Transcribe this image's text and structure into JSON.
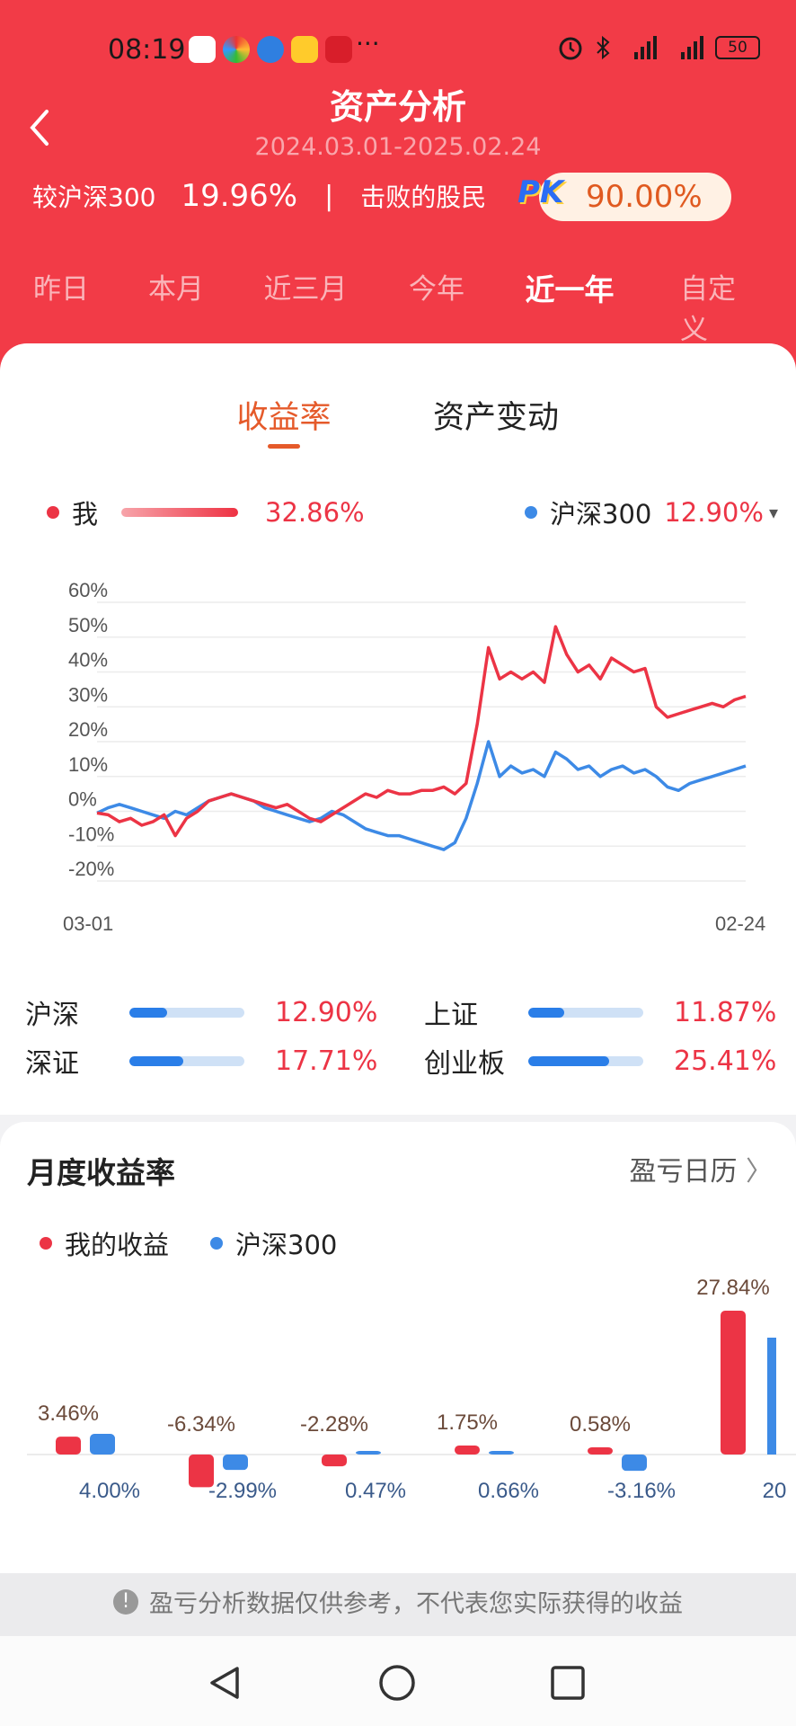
{
  "status": {
    "time": "08:19",
    "dots": "···",
    "battery": "50"
  },
  "header": {
    "title": "资产分析",
    "date_range": "2024.03.01-2025.02.24",
    "compare_label": "较沪深300",
    "compare_value": "19.96%",
    "separator": "|",
    "beat_label": "击败的股民",
    "pk": "PK",
    "beat_value": "90.00%"
  },
  "periods": [
    {
      "label": "昨日",
      "active": false
    },
    {
      "label": "本月",
      "active": false
    },
    {
      "label": "近三月",
      "active": false
    },
    {
      "label": "今年",
      "active": false
    },
    {
      "label": "近一年",
      "active": true
    },
    {
      "label": "自定义",
      "active": false
    }
  ],
  "tabs": {
    "return_rate": "收益率",
    "asset_change": "资产变动"
  },
  "legend": {
    "me_label": "我",
    "me_value": "32.86%",
    "hs_label": "沪深300",
    "hs_value": "12.90%",
    "hs_arrow": "▾"
  },
  "colors": {
    "header": "#f23b47",
    "me": "#ec3445",
    "hs300": "#3d8ae6",
    "accent": "#e55a2a"
  },
  "chart_data": {
    "type": "line",
    "yticks": [
      "60%",
      "50%",
      "40%",
      "30%",
      "20%",
      "10%",
      "0%",
      "-10%",
      "-20%"
    ],
    "ylim": [
      -20,
      60
    ],
    "x_start": "03-01",
    "x_end": "02-24",
    "series": [
      {
        "name": "我",
        "color": "#ec3445",
        "values": [
          -0.5,
          -1,
          -3,
          -2,
          -4,
          -3,
          -1,
          -7,
          -2,
          0,
          3,
          4,
          5,
          4,
          3,
          2,
          1,
          2,
          0,
          -2,
          -3,
          -1,
          1,
          3,
          5,
          4,
          6,
          5,
          5,
          6,
          6,
          7,
          5,
          8,
          25,
          47,
          38,
          40,
          38,
          40,
          37,
          53,
          45,
          40,
          42,
          38,
          44,
          42,
          40,
          41,
          30,
          27,
          28,
          29,
          30,
          31,
          30,
          32,
          33
        ]
      },
      {
        "name": "沪深300",
        "color": "#3d8ae6",
        "values": [
          -0.5,
          1,
          2,
          1,
          0,
          -1,
          -2,
          0,
          -1,
          1,
          3,
          4,
          5,
          4,
          3,
          1,
          0,
          -1,
          -2,
          -3,
          -2,
          0,
          -1,
          -3,
          -5,
          -6,
          -7,
          -7,
          -8,
          -9,
          -10,
          -11,
          -9,
          -2,
          8,
          20,
          10,
          13,
          11,
          12,
          10,
          17,
          15,
          12,
          13,
          10,
          12,
          13,
          11,
          12,
          10,
          7,
          6,
          8,
          9,
          10,
          11,
          12,
          13
        ]
      }
    ]
  },
  "indices": [
    {
      "label": "沪深",
      "value": "12.90%",
      "fill": 0.33
    },
    {
      "label": "上证",
      "value": "11.87%",
      "fill": 0.31
    },
    {
      "label": "深证",
      "value": "17.71%",
      "fill": 0.47
    },
    {
      "label": "创业板",
      "value": "25.41%",
      "fill": 0.7
    }
  ],
  "monthly": {
    "title": "月度收益率",
    "link": "盈亏日历",
    "legend_me": "我的收益",
    "legend_hs": "沪深300",
    "chart_data": {
      "type": "bar",
      "series": [
        {
          "name": "我的收益",
          "values": [
            3.46,
            -6.34,
            -2.28,
            1.75,
            0.58,
            27.84
          ]
        },
        {
          "name": "沪深300",
          "values": [
            4.0,
            -2.99,
            0.47,
            0.66,
            -3.16,
            null
          ]
        }
      ],
      "me_labels": [
        "3.46%",
        "-6.34%",
        "-2.28%",
        "1.75%",
        "0.58%",
        "27.84%"
      ],
      "hs_labels": [
        "4.00%",
        "-2.99%",
        "0.47%",
        "0.66%",
        "-3.16%",
        "20"
      ]
    }
  },
  "notice": {
    "icon": "!",
    "text": "盈亏分析数据仅供参考，不代表您实际获得的收益"
  }
}
